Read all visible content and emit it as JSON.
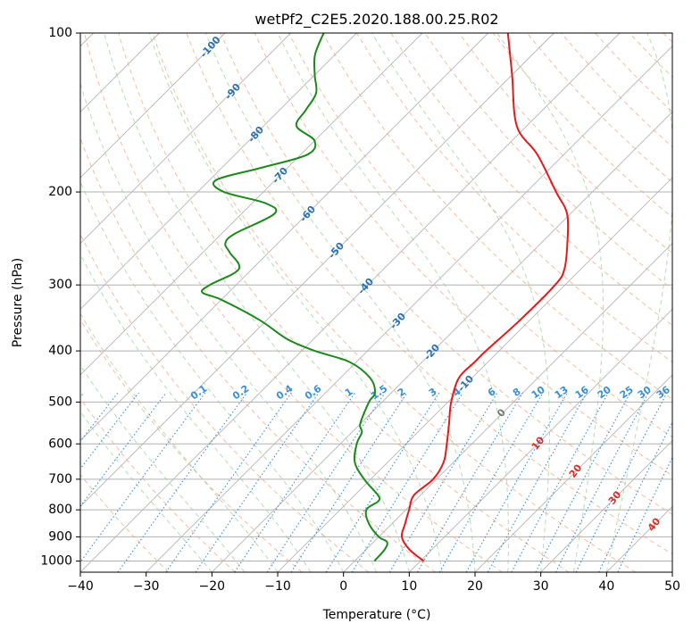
{
  "chart_data": {
    "type": "line",
    "title": "wetPf2_C2E5.2020.188.00.25.R02",
    "xlabel": "Temperature (°C)",
    "ylabel": "Pressure (hPa)",
    "xlim": [
      -40,
      50
    ],
    "ylim": [
      1050,
      100
    ],
    "y_scale": "log",
    "x_ticks": [
      -40,
      -30,
      -20,
      -10,
      0,
      10,
      20,
      30,
      40,
      50
    ],
    "x_tick_labels": [
      "−40",
      "−30",
      "−20",
      "−10",
      "0",
      "10",
      "20",
      "30",
      "40",
      "50"
    ],
    "y_ticks": [
      100,
      200,
      300,
      400,
      500,
      600,
      700,
      800,
      900,
      1000
    ],
    "y_tick_labels": [
      "100",
      "200",
      "300",
      "400",
      "500",
      "600",
      "700",
      "800",
      "900",
      "1000"
    ],
    "grid": true,
    "series": [
      {
        "role": "temperature",
        "color": "#e41a1c",
        "p": [
          1000,
          950,
          900,
          850,
          800,
          750,
          700,
          650,
          600,
          550,
          500,
          450,
          420,
          400,
          350,
          300,
          280,
          250,
          220,
          200,
          170,
          150,
          120,
          100
        ],
        "t": [
          10.5,
          6.5,
          3.5,
          2.0,
          0.5,
          -1.0,
          -0.5,
          -1.5,
          -3.8,
          -6.5,
          -9.5,
          -12.0,
          -12.0,
          -12.0,
          -11.5,
          -11.5,
          -12.5,
          -16.0,
          -20.5,
          -25.5,
          -34.0,
          -41.5,
          -50.0,
          -57.0
        ]
      },
      {
        "role": "dewpoint",
        "color": "#1b8a1b",
        "p": [
          1000,
          950,
          920,
          900,
          850,
          800,
          770,
          750,
          700,
          650,
          600,
          570,
          550,
          500,
          480,
          450,
          420,
          400,
          380,
          350,
          320,
          310,
          300,
          280,
          260,
          250,
          240,
          220,
          210,
          200,
          190,
          180,
          170,
          160,
          150,
          140,
          130,
          120,
          110,
          100
        ],
        "t": [
          3.0,
          2.8,
          2.0,
          0.0,
          -3.5,
          -6.0,
          -5.5,
          -6.5,
          -11.0,
          -15.0,
          -17.5,
          -18.5,
          -20.0,
          -22.0,
          -22.5,
          -25.5,
          -31.0,
          -38.0,
          -44.0,
          -51.0,
          -60.0,
          -64.0,
          -64.0,
          -62.0,
          -66.0,
          -68.0,
          -68.0,
          -65.0,
          -68.0,
          -76.0,
          -79.0,
          -74.0,
          -69.0,
          -70.0,
          -75.0,
          -76.0,
          -77.0,
          -80.0,
          -83.0,
          -85.0
        ]
      }
    ],
    "dry_adiabat_labels": [
      "-100",
      "-90",
      "-80",
      "-70",
      "-60",
      "-50",
      "-40",
      "-30",
      "-20",
      "-10",
      "0"
    ],
    "moist_adiabat_labels": [
      "10",
      "20",
      "30",
      "40"
    ],
    "mixing_ratio_labels": [
      "0.1",
      "0.2",
      "0.4",
      "0.6",
      "1",
      "1.5",
      "2",
      "3",
      "4",
      "6",
      "8",
      "10",
      "13",
      "16",
      "20",
      "25",
      "30",
      "36"
    ]
  }
}
